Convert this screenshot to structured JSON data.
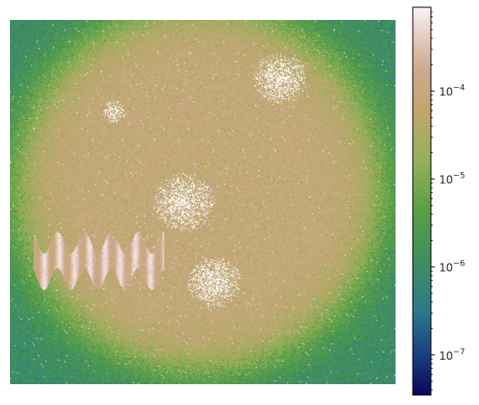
{
  "chart_data": {
    "type": "heatmap",
    "title": "",
    "xlabel": "",
    "ylabel": "",
    "axes_visible": false,
    "grid": false,
    "colormap": "gist_earth",
    "colorbar": {
      "scale": "log",
      "vmin": 3.5e-08,
      "vmax": 0.0009,
      "placement": "right",
      "ticks": [
        {
          "value": 0.0001,
          "base": "10",
          "exp": "−4"
        },
        {
          "value": 1e-05,
          "base": "10",
          "exp": "−5"
        },
        {
          "value": 1e-06,
          "base": "10",
          "exp": "−6"
        },
        {
          "value": 1e-07,
          "base": "10",
          "exp": "−7"
        }
      ]
    },
    "image": {
      "description_values": {
        "background_level": 1e-06,
        "disk_level": 8e-05,
        "streak_level": 0.0006,
        "masked_color": "#ffffff"
      }
    }
  }
}
